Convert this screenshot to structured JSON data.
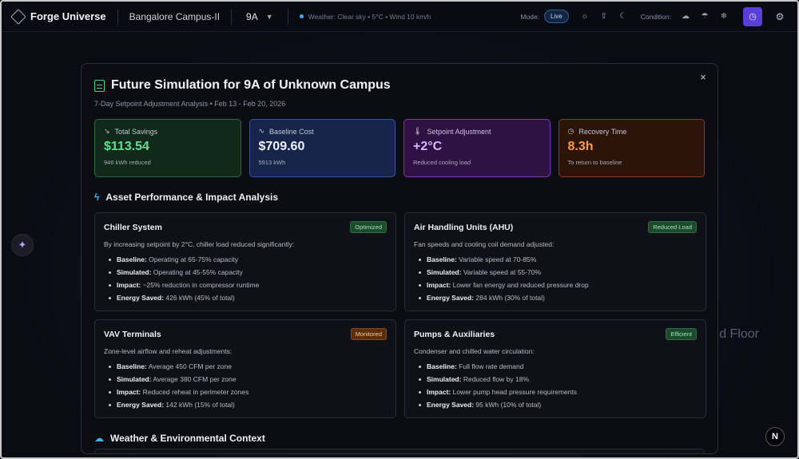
{
  "app": {
    "name": "Forge Universe",
    "campus": "Bangalore Campus-II",
    "floor": "9A",
    "weather": "Weather: Clear sky • 5°C • Wind 10 km/h",
    "mode_label": "Mode:",
    "mode_value": "Live",
    "condition_label": "Condition:"
  },
  "background": {
    "floor_text": "nd Floor",
    "n_badge": "N"
  },
  "modal": {
    "title": "Future Simulation for 9A of Unknown Campus",
    "subtitle": "7-Day Setpoint Adjustment Analysis • Feb 13 - Feb 20, 2026",
    "close": "×",
    "kpis": [
      {
        "label": "Total Savings",
        "value": "$113.54",
        "sub": "946 kWh reduced",
        "color": "#5fe08f"
      },
      {
        "label": "Baseline Cost",
        "value": "$709.60",
        "sub": "5913 kWh",
        "color": "#eef1ff"
      },
      {
        "label": "Setpoint Adjustment",
        "value": "+2°C",
        "sub": "Reduced cooling load",
        "color": "#dcb8ff"
      },
      {
        "label": "Recovery Time",
        "value": "8.3h",
        "sub": "To return to baseline",
        "color": "#ff9a4a"
      }
    ],
    "section_assets": "Asset Performance & Impact Analysis",
    "section_weather": "Weather & Environmental Context",
    "cards": [
      {
        "title": "Chiller System",
        "badge": "Optimized",
        "desc": "By increasing setpoint by 2°C, chiller load reduced significantly:",
        "items": [
          {
            "k": "Baseline:",
            "v": " Operating at 65-75% capacity"
          },
          {
            "k": "Simulated:",
            "v": " Operating at 45-55% capacity"
          },
          {
            "k": "Impact:",
            "v": " ~25% reduction in compressor runtime"
          },
          {
            "k": "Energy Saved:",
            "v": " 426 kWh (45% of total)"
          }
        ]
      },
      {
        "title": "Air Handling Units (AHU)",
        "badge": "Reduced Load",
        "desc": "Fan speeds and cooling coil demand adjusted:",
        "items": [
          {
            "k": "Baseline:",
            "v": " Variable speed at 70-85%"
          },
          {
            "k": "Simulated:",
            "v": " Variable speed at 55-70%"
          },
          {
            "k": "Impact:",
            "v": " Lower fan energy and reduced pressure drop"
          },
          {
            "k": "Energy Saved:",
            "v": " 284 kWh (30% of total)"
          }
        ]
      },
      {
        "title": "VAV Terminals",
        "badge": "Monitored",
        "desc": "Zone-level airflow and reheat adjustments:",
        "items": [
          {
            "k": "Baseline:",
            "v": " Average 450 CFM per zone"
          },
          {
            "k": "Simulated:",
            "v": " Average 380 CFM per zone"
          },
          {
            "k": "Impact:",
            "v": " Reduced reheat in perimeter zones"
          },
          {
            "k": "Energy Saved:",
            "v": " 142 kWh (15% of total)"
          }
        ]
      },
      {
        "title": "Pumps & Auxiliaries",
        "badge": "Efficient",
        "desc": "Condenser and chilled water circulation:",
        "items": [
          {
            "k": "Baseline:",
            "v": " Full flow rate demand"
          },
          {
            "k": "Simulated:",
            "v": " Reduced flow by 18%"
          },
          {
            "k": "Impact:",
            "v": " Lower pump head pressure requirements"
          },
          {
            "k": "Energy Saved:",
            "v": " 95 kWh (10% of total)"
          }
        ]
      }
    ]
  }
}
